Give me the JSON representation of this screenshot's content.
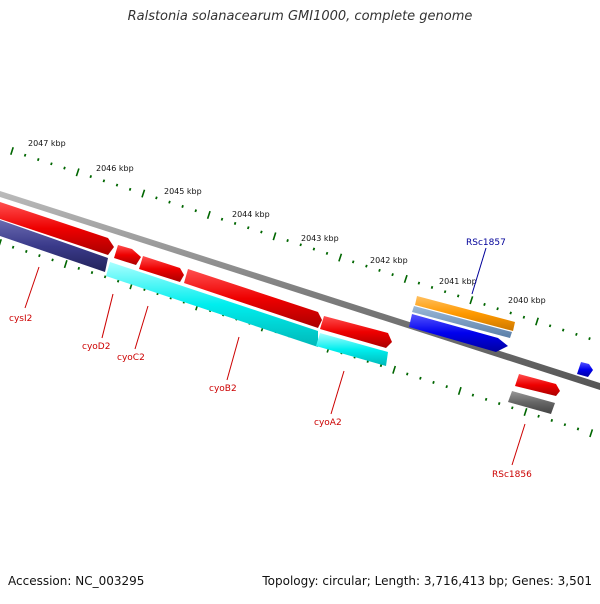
{
  "title": "Ralstonia solanacearum GMI1000, complete genome",
  "footer": {
    "accession": "Accession: NC_003295",
    "stats": "Topology: circular; Length: 3,716,413 bp; Genes: 3,501"
  },
  "scale_labels": [
    "2047 kbp",
    "2046 kbp",
    "2045 kbp",
    "2044 kbp",
    "2043 kbp",
    "2042 kbp",
    "2041 kbp",
    "2040 kbp"
  ],
  "genes": [
    {
      "label": "cysI2",
      "color": "#cc0000"
    },
    {
      "label": "cyoD2",
      "color": "#cc0000"
    },
    {
      "label": "cyoC2",
      "color": "#cc0000"
    },
    {
      "label": "cyoB2",
      "color": "#cc0000"
    },
    {
      "label": "cyoA2",
      "color": "#cc0000"
    },
    {
      "label": "RSc1857",
      "color": "#000099"
    },
    {
      "label": "RSc1856",
      "color": "#cc0000"
    }
  ],
  "colors": {
    "forward_cds": "#ee0000",
    "reverse_cds_cyan": "#00eeee",
    "reverse_cds_purple": "#3a3a8a",
    "blue_feature": "#0000ee",
    "orange_feature": "#ff9900",
    "gray_feature": "#555555",
    "backbone": "#808080",
    "tick_green": "#006600"
  }
}
